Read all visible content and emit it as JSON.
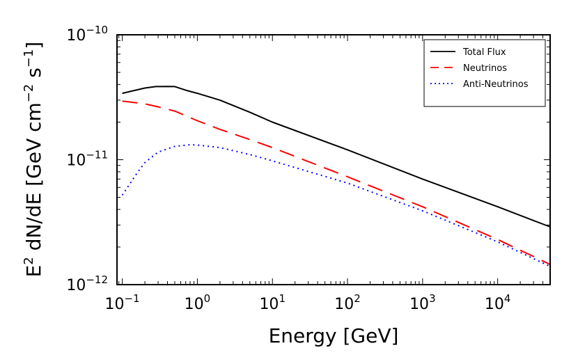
{
  "chart_data": {
    "type": "line",
    "title": "",
    "xlabel": "Energy [GeV]",
    "ylabel": {
      "prefix": "E",
      "prefix_exp": "2",
      "mid": " dN/dE [GeV cm",
      "mid_exp": "−2",
      "unit": " s",
      "unit_exp": "−1",
      "suffix": "]"
    },
    "xscale": "log",
    "yscale": "log",
    "xlim": [
      0.085,
      50000
    ],
    "ylim": [
      1e-12,
      1e-10
    ],
    "grid": false,
    "legend_position": "top-right",
    "x_ticks": [
      {
        "value": 0.1,
        "base": "10",
        "exp": "−1"
      },
      {
        "value": 1,
        "base": "10",
        "exp": "0"
      },
      {
        "value": 10,
        "base": "10",
        "exp": "1"
      },
      {
        "value": 100,
        "base": "10",
        "exp": "2"
      },
      {
        "value": 1000,
        "base": "10",
        "exp": "3"
      },
      {
        "value": 10000,
        "base": "10",
        "exp": "4"
      }
    ],
    "y_ticks": [
      {
        "value": 1e-12,
        "base": "10",
        "exp": "−12"
      },
      {
        "value": 1e-11,
        "base": "10",
        "exp": "−11"
      },
      {
        "value": 1e-10,
        "base": "10",
        "exp": "−10"
      }
    ],
    "series": [
      {
        "name": "Total Flux",
        "color": "#000000",
        "style": "solid",
        "x": [
          0.1,
          0.15,
          0.2,
          0.28,
          0.4,
          0.5,
          0.7,
          1,
          2,
          5,
          10,
          100,
          1000,
          10000,
          50000
        ],
        "y": [
          3.4e-11,
          3.6e-11,
          3.75e-11,
          3.85e-11,
          3.86e-11,
          3.85e-11,
          3.6e-11,
          3.4e-11,
          3e-11,
          2.4e-11,
          2e-11,
          1.2e-11,
          7e-12,
          4.2e-12,
          2.9e-12
        ]
      },
      {
        "name": "Neutrinos",
        "color": "#ff0000",
        "style": "dashed",
        "x": [
          0.1,
          0.2,
          0.3,
          0.5,
          1,
          2,
          5,
          10,
          100,
          1000,
          10000,
          50000
        ],
        "y": [
          2.95e-11,
          2.8e-11,
          2.65e-11,
          2.45e-11,
          2.05e-11,
          1.75e-11,
          1.45e-11,
          1.25e-11,
          7.3e-12,
          4.2e-12,
          2.3e-12,
          1.45e-12
        ]
      },
      {
        "name": "Anti-Neutrinos",
        "color": "#0000ff",
        "style": "dotted",
        "x": [
          0.1,
          0.15,
          0.2,
          0.3,
          0.5,
          0.8,
          1,
          2,
          5,
          10,
          100,
          1000,
          10000,
          50000
        ],
        "y": [
          5.2e-12,
          7.5e-12,
          9.5e-12,
          1.15e-11,
          1.28e-11,
          1.32e-11,
          1.31e-11,
          1.25e-11,
          1.1e-11,
          9.8e-12,
          6.5e-12,
          3.9e-12,
          2.2e-12,
          1.4e-12
        ]
      }
    ]
  }
}
